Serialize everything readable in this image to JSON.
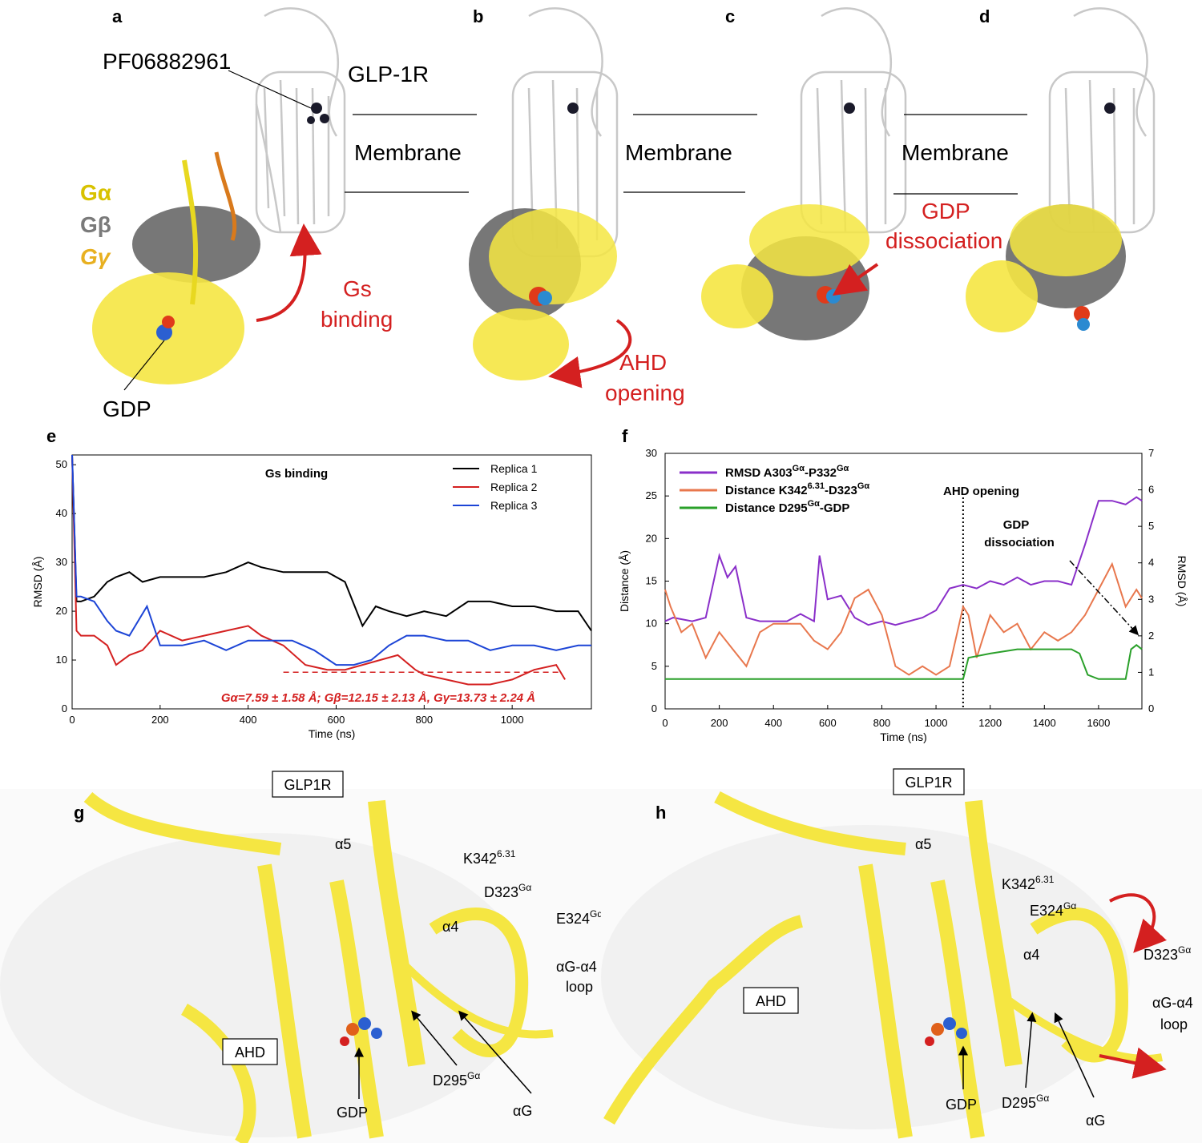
{
  "panels": {
    "a": "a",
    "b": "b",
    "c": "c",
    "d": "d",
    "e": "e",
    "f": "f",
    "g": "g",
    "h": "h"
  },
  "top": {
    "ligand": "PF06882961",
    "receptor": "GLP-1R",
    "membrane": "Membrane",
    "galpha": "Gα",
    "gbeta": "Gβ",
    "ggamma": "Gγ",
    "gdp": "GDP",
    "gs_binding_1": "Gs",
    "gs_binding_2": "binding",
    "ahd_1": "AHD",
    "ahd_2": "opening",
    "gdp_diss_1": "GDP",
    "gdp_diss_2": "dissociation"
  },
  "colors": {
    "galpha": "#f5e642",
    "gbeta": "#6b6b6b",
    "ggamma": "#d97a1c",
    "receptor": "#d8d8d8",
    "arrow": "#d42020"
  },
  "chart_data": [
    {
      "type": "line",
      "panel": "e",
      "title": "Gs binding",
      "xlabel": "Time (ns)",
      "ylabel": "RMSD (Å)",
      "xlim": [
        0,
        1180
      ],
      "ylim": [
        0,
        52
      ],
      "xticks": [
        0,
        200,
        400,
        600,
        800,
        1000
      ],
      "yticks": [
        0,
        10,
        20,
        30,
        40,
        50
      ],
      "legend_position": "top-right",
      "reference_line": {
        "y": 7.5,
        "x": [
          480,
          1110
        ],
        "style": "dashed"
      },
      "annotation": "Gα=7.59 ± 1.58 Å;  Gβ=12.15 ± 2.13 Å,  Gγ=13.73 ± 2.24 Å",
      "series": [
        {
          "name": "Replica 1",
          "color": "#000000",
          "x": [
            0,
            10,
            20,
            50,
            80,
            100,
            130,
            160,
            200,
            250,
            300,
            350,
            400,
            430,
            480,
            530,
            580,
            620,
            660,
            690,
            720,
            760,
            800,
            850,
            900,
            950,
            1000,
            1050,
            1100,
            1150,
            1180
          ],
          "y": [
            52,
            22,
            22,
            23,
            26,
            27,
            28,
            26,
            27,
            27,
            27,
            28,
            30,
            29,
            28,
            28,
            28,
            26,
            17,
            21,
            20,
            19,
            20,
            19,
            22,
            22,
            21,
            21,
            20,
            20,
            16
          ]
        },
        {
          "name": "Replica 2",
          "color": "#d42020",
          "x": [
            0,
            10,
            20,
            50,
            80,
            100,
            130,
            160,
            200,
            250,
            300,
            350,
            400,
            430,
            480,
            530,
            580,
            620,
            660,
            700,
            740,
            780,
            800,
            850,
            900,
            950,
            1000,
            1050,
            1100,
            1120
          ],
          "y": [
            52,
            16,
            15,
            15,
            13,
            9,
            11,
            12,
            16,
            14,
            15,
            16,
            17,
            15,
            13,
            9,
            8,
            8,
            9,
            10,
            11,
            8,
            7,
            6,
            5,
            5,
            6,
            8,
            9,
            6
          ]
        },
        {
          "name": "Replica 3",
          "color": "#1c44d6",
          "x": [
            0,
            10,
            20,
            50,
            80,
            100,
            130,
            170,
            200,
            250,
            300,
            350,
            400,
            450,
            500,
            550,
            600,
            640,
            680,
            720,
            760,
            800,
            850,
            900,
            950,
            1000,
            1050,
            1100,
            1150,
            1180
          ],
          "y": [
            52,
            23,
            23,
            22,
            18,
            16,
            15,
            21,
            13,
            13,
            14,
            12,
            14,
            14,
            14,
            12,
            9,
            9,
            10,
            13,
            15,
            15,
            14,
            14,
            12,
            13,
            13,
            12,
            13,
            13
          ]
        }
      ]
    },
    {
      "type": "line",
      "panel": "f",
      "xlabel": "Time (ns)",
      "ylabel": "Distance (Å)",
      "y2label": "RMSD (Å)",
      "xlim": [
        0,
        1760
      ],
      "ylim": [
        0,
        30
      ],
      "y2lim": [
        0,
        7
      ],
      "xticks": [
        0,
        200,
        400,
        600,
        800,
        1000,
        1200,
        1400,
        1600
      ],
      "yticks": [
        0,
        5,
        10,
        15,
        20,
        25,
        30
      ],
      "y2ticks": [
        0,
        1,
        2,
        3,
        4,
        5,
        6,
        7
      ],
      "vline_x": 1100,
      "annotations": [
        "AHD opening",
        "GDP",
        "dissociation"
      ],
      "legend_position": "top-left",
      "series": [
        {
          "name": "RMSD A303Gα-P332Gα",
          "axis": "right",
          "color": "#8a2fc9",
          "x": [
            0,
            30,
            100,
            150,
            200,
            230,
            260,
            300,
            350,
            400,
            450,
            500,
            550,
            570,
            600,
            650,
            700,
            750,
            800,
            850,
            900,
            950,
            1000,
            1050,
            1100,
            1150,
            1200,
            1250,
            1300,
            1350,
            1400,
            1450,
            1500,
            1550,
            1600,
            1650,
            1700,
            1740,
            1760
          ],
          "y": [
            2.4,
            2.5,
            2.4,
            2.5,
            4.2,
            3.6,
            3.9,
            2.5,
            2.4,
            2.4,
            2.4,
            2.6,
            2.4,
            4.2,
            3.0,
            3.1,
            2.5,
            2.3,
            2.4,
            2.3,
            2.4,
            2.5,
            2.7,
            3.3,
            3.4,
            3.3,
            3.5,
            3.4,
            3.6,
            3.4,
            3.5,
            3.5,
            3.4,
            4.5,
            5.7,
            5.7,
            5.6,
            5.8,
            5.7
          ]
        },
        {
          "name": "Distance K3426.31-D323Gα",
          "axis": "left",
          "color": "#e8774d",
          "x": [
            0,
            20,
            60,
            100,
            150,
            200,
            250,
            300,
            350,
            400,
            450,
            500,
            550,
            600,
            650,
            700,
            750,
            800,
            850,
            900,
            950,
            1000,
            1050,
            1100,
            1120,
            1150,
            1200,
            1250,
            1300,
            1350,
            1400,
            1450,
            1500,
            1550,
            1600,
            1650,
            1700,
            1740,
            1760
          ],
          "y": [
            14,
            12,
            9,
            10,
            6,
            9,
            7,
            5,
            9,
            10,
            10,
            10,
            8,
            7,
            9,
            13,
            14,
            11,
            5,
            4,
            5,
            4,
            5,
            12,
            11,
            6,
            11,
            9,
            10,
            7,
            9,
            8,
            9,
            11,
            14,
            17,
            12,
            14,
            13
          ]
        },
        {
          "name": "Distance D295Gα-GDP",
          "axis": "left",
          "color": "#2aa02a",
          "x": [
            0,
            100,
            200,
            300,
            400,
            500,
            600,
            700,
            800,
            900,
            1000,
            1100,
            1120,
            1200,
            1300,
            1400,
            1500,
            1530,
            1560,
            1600,
            1650,
            1700,
            1720,
            1740,
            1760
          ],
          "y": [
            3.5,
            3.5,
            3.5,
            3.5,
            3.5,
            3.5,
            3.5,
            3.5,
            3.5,
            3.5,
            3.5,
            3.5,
            6,
            6.5,
            7,
            7,
            7,
            6.5,
            4,
            3.5,
            3.5,
            3.5,
            7,
            7.5,
            7
          ]
        }
      ],
      "legend": {
        "rmsd_pre": "RMSD A303",
        "rmsd_sup1": "Gα",
        "rmsd_mid": "-P332",
        "rmsd_sup2": "Gα",
        "k_pre": "Distance K342",
        "k_sup1": "6.31",
        "k_mid": "-D323",
        "k_sup2": "Gα",
        "d_pre": "Distance D295",
        "d_sup1": "Gα",
        "d_mid": "-GDP"
      }
    }
  ],
  "bottom": {
    "glp1r": "GLP1R",
    "a5": "α5",
    "a4": "α4",
    "ahd": "AHD",
    "gdp": "GDP",
    "ag": "αG",
    "loop_1": "αG-α4",
    "loop_2": "loop",
    "k342": "K342",
    "k342_sup": "6.31",
    "d323": "D323",
    "e324": "E324",
    "d295": "D295",
    "ga_sup": "Gα"
  }
}
